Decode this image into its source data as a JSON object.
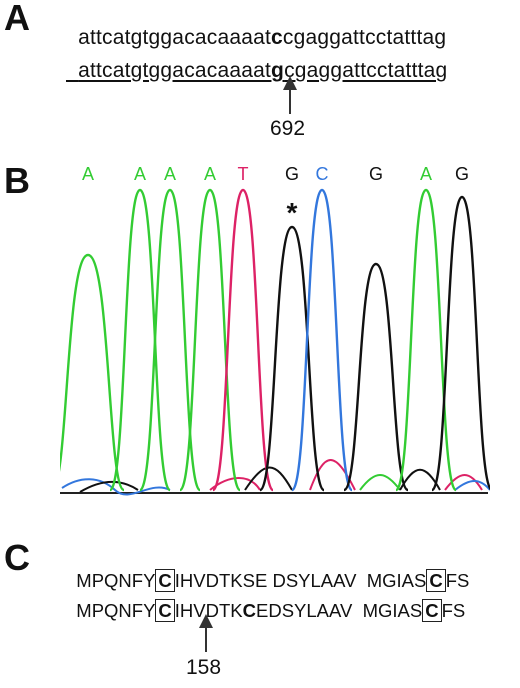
{
  "panel_a": {
    "letter": "A",
    "seq1": {
      "pre": "attcatgtggacacaaaat",
      "mut": "c",
      "post": "cgaggattcctatttag"
    },
    "seq2": {
      "pre": "attcatgtggacacaaaat",
      "mut": "g",
      "post": "cgaggattcctatttag"
    },
    "position": "692"
  },
  "panel_b": {
    "letter": "B",
    "bases": [
      {
        "label": "A",
        "color": "#33cc33"
      },
      {
        "label": "A",
        "color": "#33cc33"
      },
      {
        "label": "A",
        "color": "#33cc33"
      },
      {
        "label": "A",
        "color": "#33cc33"
      },
      {
        "label": "T",
        "color": "#dd2266"
      },
      {
        "label": "G",
        "color": "#111111"
      },
      {
        "label": "C",
        "color": "#3377dd"
      },
      {
        "label": "G",
        "color": "#111111"
      },
      {
        "label": "A",
        "color": "#33cc33"
      },
      {
        "label": "G",
        "color": "#111111"
      }
    ],
    "marker": "*"
  },
  "panel_c": {
    "letter": "C",
    "line1": {
      "a": "MPQNFY",
      "box1": "C",
      "b": "IHVDTKSE DSYLAAV  MGIAS",
      "box2": "C",
      "c": "FS"
    },
    "line2": {
      "a": "MPQNFY",
      "box1": "C",
      "b1": "IHVDTK",
      "mut": "C",
      "b2": "EDSYLAAV  MGIAS",
      "box2": "C",
      "c": "FS"
    },
    "position": "158"
  }
}
